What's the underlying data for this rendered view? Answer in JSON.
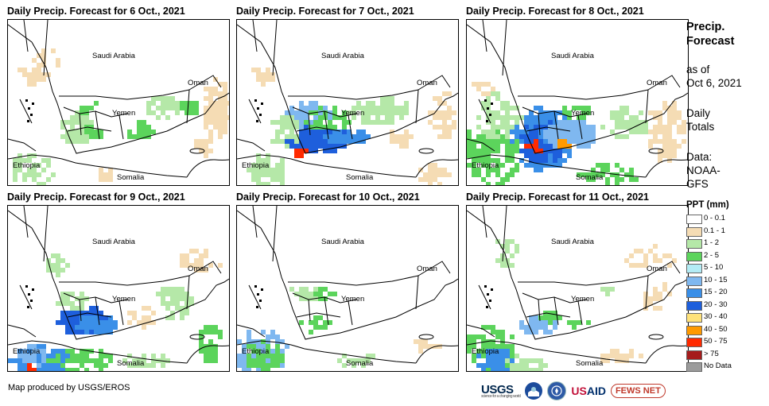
{
  "panels": [
    {
      "title": "Daily Precip. Forecast for 6 Oct., 2021"
    },
    {
      "title": "Daily Precip. Forecast for 7 Oct., 2021"
    },
    {
      "title": "Daily Precip. Forecast for 8 Oct., 2021"
    },
    {
      "title": "Daily Precip. Forecast for 9 Oct., 2021"
    },
    {
      "title": "Daily Precip. Forecast for 10 Oct., 2021"
    },
    {
      "title": "Daily Precip. Forecast for 11 Oct., 2021"
    }
  ],
  "map_labels": {
    "saudi": "Saudi Arabia",
    "oman": "Oman",
    "yemen": "Yemen",
    "ethiopia": "Ethiopia",
    "somalia": "Somalia"
  },
  "sidebar": {
    "title_line1": "Precip.",
    "title_line2": "Forecast",
    "asof_line1": "as of",
    "asof_line2": "Oct 6, 2021",
    "daily_line1": "Daily",
    "daily_line2": "Totals",
    "data_line1": "Data:",
    "data_line2": "NOAA-",
    "data_line3": "GFS"
  },
  "legend": {
    "title": "PPT (mm)",
    "items": [
      {
        "label": "0 - 0.1",
        "color": "#ffffff"
      },
      {
        "label": "0.1 - 1",
        "color": "#f5dcb4"
      },
      {
        "label": "1 - 2",
        "color": "#b5e8a8"
      },
      {
        "label": "2 - 5",
        "color": "#5cd45c"
      },
      {
        "label": "5 - 10",
        "color": "#b3ecf5"
      },
      {
        "label": "10 - 15",
        "color": "#7fb8f0"
      },
      {
        "label": "15 - 20",
        "color": "#3a8fe8"
      },
      {
        "label": "20 - 30",
        "color": "#1e5fdc"
      },
      {
        "label": "30 - 40",
        "color": "#ffe27a"
      },
      {
        "label": "40 - 50",
        "color": "#ff9a00"
      },
      {
        "label": "50 - 75",
        "color": "#ff2a00"
      },
      {
        "label": "> 75",
        "color": "#a51c1c"
      },
      {
        "label": "No Data",
        "color": "#9b9b9b"
      }
    ]
  },
  "footer": {
    "credit": "Map produced by USGS/EROS"
  },
  "logos": {
    "usgs": "USGS",
    "usgs_tag": "science for a changing world",
    "usaid_a": "US",
    "usaid_b": "AID",
    "fews": "FEWS NET"
  }
}
